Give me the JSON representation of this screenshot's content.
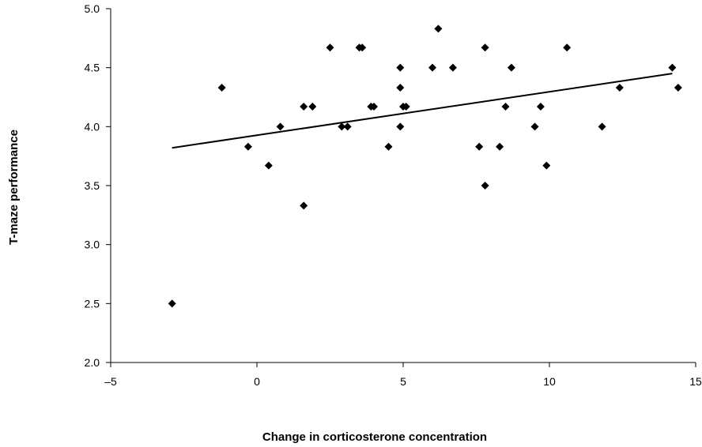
{
  "chart_data": {
    "type": "scatter",
    "title": "",
    "xlabel": "Change in corticosterone concentration",
    "ylabel": "T-maze performance",
    "xlim": [
      -5,
      15
    ],
    "ylim": [
      2.0,
      5.0
    ],
    "x_ticks": [
      -5,
      0,
      5,
      10,
      15
    ],
    "x_tick_labels": [
      "–5",
      "0",
      "5",
      "10",
      "15"
    ],
    "y_ticks": [
      2.0,
      2.5,
      3.0,
      3.5,
      4.0,
      4.5,
      5.0
    ],
    "y_tick_labels": [
      "2.0",
      "2.5",
      "3.0",
      "3.5",
      "4.0",
      "4.5",
      "5.0"
    ],
    "grid": false,
    "legend": false,
    "marker": "diamond",
    "marker_color": "#000000",
    "series": [
      {
        "points": [
          [
            -2.9,
            2.5
          ],
          [
            -1.2,
            4.33
          ],
          [
            -0.3,
            3.83
          ],
          [
            0.4,
            3.67
          ],
          [
            0.8,
            4.0
          ],
          [
            1.6,
            4.17
          ],
          [
            1.6,
            3.33
          ],
          [
            1.9,
            4.17
          ],
          [
            2.5,
            4.67
          ],
          [
            2.9,
            4.0
          ],
          [
            3.1,
            4.0
          ],
          [
            3.5,
            4.67
          ],
          [
            3.6,
            4.67
          ],
          [
            3.9,
            4.17
          ],
          [
            4.0,
            4.17
          ],
          [
            4.5,
            3.83
          ],
          [
            4.9,
            4.5
          ],
          [
            4.9,
            4.33
          ],
          [
            4.9,
            4.0
          ],
          [
            5.0,
            4.17
          ],
          [
            5.1,
            4.17
          ],
          [
            6.0,
            4.5
          ],
          [
            6.2,
            4.83
          ],
          [
            6.7,
            4.5
          ],
          [
            7.6,
            3.83
          ],
          [
            7.8,
            4.67
          ],
          [
            7.8,
            3.5
          ],
          [
            8.3,
            3.83
          ],
          [
            8.5,
            4.17
          ],
          [
            8.7,
            4.5
          ],
          [
            9.5,
            4.0
          ],
          [
            9.7,
            4.17
          ],
          [
            9.9,
            3.67
          ],
          [
            10.6,
            4.67
          ],
          [
            11.8,
            4.0
          ],
          [
            12.4,
            4.33
          ],
          [
            14.2,
            4.5
          ],
          [
            14.4,
            4.33
          ]
        ]
      }
    ],
    "trendline": {
      "x": [
        -2.9,
        14.2
      ],
      "y": [
        3.82,
        4.45
      ]
    }
  }
}
